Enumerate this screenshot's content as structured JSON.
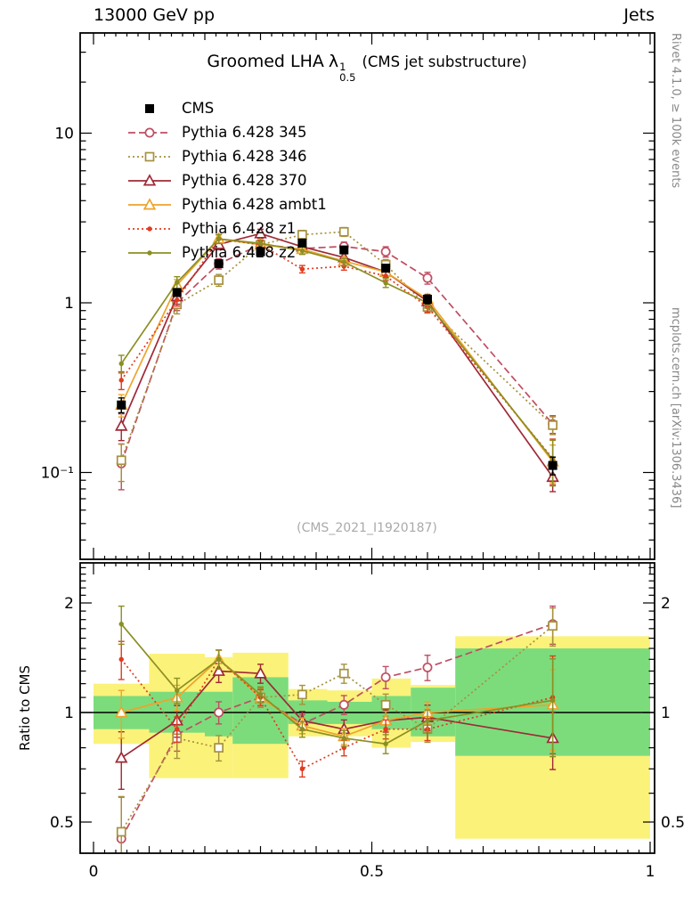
{
  "header": {
    "left": "13000 GeV pp",
    "right": "Jets"
  },
  "side_captions": {
    "top_right": "Rivet 4.1.0, ≥ 100k events",
    "bottom_right": "mcplots.cern.ch [arXiv:1306.3436]"
  },
  "title": {
    "prefix": "Groomed LHA",
    "symbol": "λ",
    "sup": "1",
    "sub": "0.5",
    "suffix": "(CMS jet substructure)"
  },
  "watermark": "(CMS_2021_I1920187)",
  "ratio_ylabel": "Ratio to CMS",
  "colors": {
    "band_yellow": "#fbf27a",
    "band_green": "#7cdc7c",
    "ref_line": "#000000",
    "frame": "#000000"
  },
  "chart_data": {
    "type": "line",
    "title": "Groomed LHA lambda^1_0.5 (CMS jet substructure)",
    "xlabel": "",
    "ylabel": "",
    "legend_position": "top-left",
    "grid": false,
    "x": [
      0.05,
      0.15,
      0.225,
      0.3,
      0.375,
      0.45,
      0.525,
      0.6,
      0.825
    ],
    "axes": {
      "x": {
        "min": 0,
        "max": 1,
        "ticks": [
          {
            "v": 0,
            "label": "0"
          },
          {
            "v": 0.5,
            "label": "0.5"
          },
          {
            "v": 1,
            "label": "1"
          }
        ]
      },
      "y_top": {
        "scale": "log",
        "min": 0.03,
        "max": 39,
        "ticks": [
          {
            "v": 10,
            "label": "10"
          },
          {
            "v": 1,
            "label": "1"
          },
          {
            "v": 0.1,
            "label": "10⁻¹"
          }
        ]
      },
      "y_ratio": {
        "scale": "log",
        "min": 0.41,
        "max": 2.58,
        "ticks": [
          {
            "v": 2,
            "label": "2"
          },
          {
            "v": 1,
            "label": "1"
          },
          {
            "v": 0.5,
            "label": "0.5"
          }
        ]
      }
    },
    "series": [
      {
        "key": "cms",
        "label": "CMS",
        "color": "#000000",
        "marker": "sq-fill",
        "line": false,
        "dash": "none",
        "values": [
          0.25,
          1.15,
          1.7,
          2.0,
          2.25,
          2.05,
          1.6,
          1.05,
          0.11
        ],
        "ratio": null,
        "rel_err": [
          0.1,
          0.05,
          0.04,
          0.04,
          0.04,
          0.04,
          0.05,
          0.06,
          0.12
        ]
      },
      {
        "key": "p345",
        "label": "Pythia 6.428 345",
        "color": "#bf4e63",
        "marker": "circ-open",
        "line": true,
        "dash": "8 4",
        "values": [
          0.113,
          1.0,
          1.7,
          2.2,
          2.09,
          2.15,
          2.0,
          1.4,
          0.193
        ],
        "ratio": [
          0.45,
          0.87,
          1.0,
          1.1,
          0.93,
          1.05,
          1.25,
          1.33,
          1.75
        ],
        "rel_err": [
          0.3,
          0.1,
          0.07,
          0.06,
          0.06,
          0.06,
          0.07,
          0.08,
          0.12
        ]
      },
      {
        "key": "p346",
        "label": "Pythia 6.428 346",
        "color": "#a6913e",
        "marker": "sq-open",
        "line": true,
        "dash": "2 3",
        "values": [
          0.118,
          0.978,
          1.36,
          2.2,
          2.52,
          2.62,
          1.68,
          0.945,
          0.19
        ],
        "ratio": [
          0.47,
          0.85,
          0.8,
          1.1,
          1.12,
          1.28,
          1.05,
          0.9,
          1.73
        ],
        "rel_err": [
          0.25,
          0.12,
          0.08,
          0.06,
          0.06,
          0.06,
          0.07,
          0.08,
          0.12
        ]
      },
      {
        "key": "p370",
        "label": "Pythia 6.428 370",
        "color": "#9f2936",
        "marker": "tri-open",
        "line": true,
        "dash": "none",
        "values": [
          0.188,
          1.09,
          2.21,
          2.56,
          2.14,
          1.85,
          1.52,
          1.02,
          0.094
        ],
        "ratio": [
          0.75,
          0.95,
          1.3,
          1.28,
          0.95,
          0.9,
          0.95,
          0.97,
          0.85
        ],
        "rel_err": [
          0.18,
          0.1,
          0.07,
          0.06,
          0.06,
          0.06,
          0.07,
          0.08,
          0.18
        ]
      },
      {
        "key": "ambt1",
        "label": "Pythia 6.428 ambt1",
        "color": "#eea32c",
        "marker": "tri-open",
        "line": true,
        "dash": "none",
        "values": [
          0.25,
          1.27,
          2.38,
          2.2,
          2.07,
          1.76,
          1.52,
          1.05,
          0.116
        ],
        "ratio": [
          1.0,
          1.1,
          1.4,
          1.1,
          0.92,
          0.86,
          0.95,
          1.0,
          1.05
        ],
        "rel_err": [
          0.15,
          0.08,
          0.06,
          0.05,
          0.05,
          0.05,
          0.06,
          0.07,
          0.25
        ]
      },
      {
        "key": "z1",
        "label": "Pythia 6.428 z1",
        "color": "#e13c20",
        "marker": "dot",
        "line": true,
        "dash": "2 3",
        "values": [
          0.35,
          1.04,
          2.38,
          2.2,
          1.58,
          1.64,
          1.44,
          0.945,
          0.121
        ],
        "ratio": [
          1.4,
          0.9,
          1.4,
          1.1,
          0.7,
          0.8,
          0.9,
          0.9,
          1.1
        ],
        "rel_err": [
          0.12,
          0.08,
          0.06,
          0.05,
          0.05,
          0.05,
          0.06,
          0.07,
          0.3
        ]
      },
      {
        "key": "z2",
        "label": "Pythia 6.428 z2",
        "color": "#8c8f22",
        "marker": "dot",
        "line": true,
        "dash": "none",
        "values": [
          0.438,
          1.32,
          2.38,
          2.24,
          2.03,
          1.74,
          1.31,
          1.0,
          0.119
        ],
        "ratio": [
          1.75,
          1.15,
          1.4,
          1.12,
          0.9,
          0.85,
          0.82,
          0.95,
          1.08
        ],
        "rel_err": [
          0.12,
          0.08,
          0.06,
          0.05,
          0.05,
          0.05,
          0.06,
          0.07,
          0.3
        ]
      }
    ],
    "bands": {
      "edges": [
        0,
        0.1,
        0.2,
        0.25,
        0.35,
        0.42,
        0.5,
        0.57,
        0.65,
        1.0
      ],
      "yellow": [
        [
          0.82,
          1.2
        ],
        [
          0.66,
          1.45
        ],
        [
          0.66,
          1.42
        ],
        [
          0.66,
          1.46
        ],
        [
          0.86,
          1.16
        ],
        [
          0.86,
          1.15
        ],
        [
          0.8,
          1.24
        ],
        [
          0.83,
          1.19
        ],
        [
          0.45,
          1.62
        ]
      ],
      "green": [
        [
          0.9,
          1.11
        ],
        [
          0.88,
          1.14
        ],
        [
          0.86,
          1.14
        ],
        [
          0.82,
          1.25
        ],
        [
          0.93,
          1.08
        ],
        [
          0.93,
          1.07
        ],
        [
          0.9,
          1.11
        ],
        [
          0.86,
          1.17
        ],
        [
          0.76,
          1.5
        ]
      ]
    }
  }
}
